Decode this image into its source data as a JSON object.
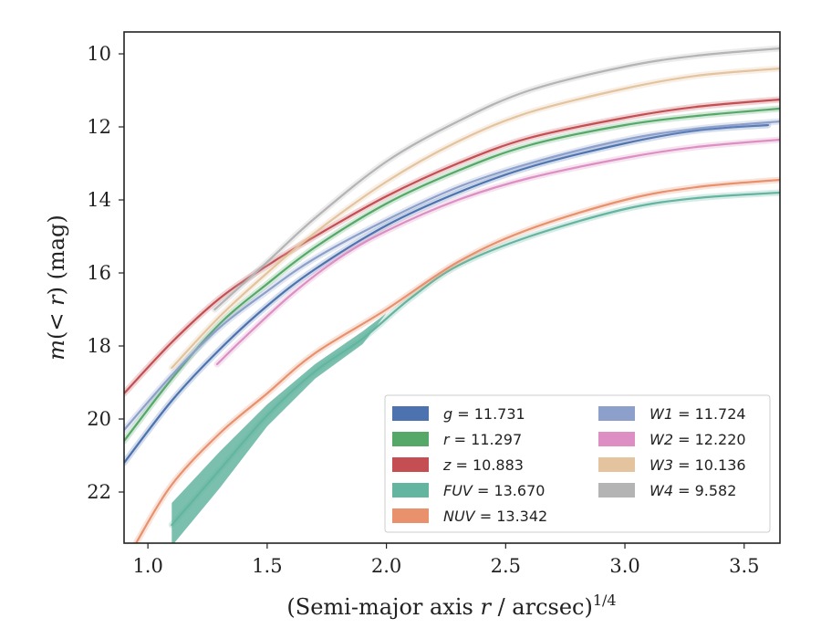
{
  "chart_data": {
    "type": "line",
    "xlabel": "(Semi-major axis r / arcsec)^1/4",
    "ylabel": "m(< r) (mag)",
    "xlim": [
      0.9,
      3.65
    ],
    "ylim": [
      23.4,
      9.4
    ],
    "y_inverted": true,
    "x_ticks": [
      "1.0",
      "1.5",
      "2.0",
      "2.5",
      "3.0",
      "3.5"
    ],
    "y_ticks": [
      "10",
      "12",
      "14",
      "16",
      "18",
      "20",
      "22"
    ],
    "legend_position": "lower-right",
    "series": [
      {
        "name": "g",
        "legend_value": "11.731",
        "color": "#4c72b0",
        "points": [
          [
            0.9,
            21.2
          ],
          [
            1.1,
            19.5
          ],
          [
            1.3,
            18.1
          ],
          [
            1.5,
            16.9
          ],
          [
            1.7,
            15.9
          ],
          [
            2.0,
            14.7
          ],
          [
            2.3,
            13.8
          ],
          [
            2.6,
            13.1
          ],
          [
            3.0,
            12.45
          ],
          [
            3.3,
            12.1
          ],
          [
            3.6,
            11.95
          ]
        ]
      },
      {
        "name": "r",
        "legend_value": "11.297",
        "color": "#55a868",
        "points": [
          [
            0.9,
            20.6
          ],
          [
            1.1,
            18.9
          ],
          [
            1.3,
            17.4
          ],
          [
            1.5,
            16.3
          ],
          [
            1.7,
            15.3
          ],
          [
            2.0,
            14.1
          ],
          [
            2.3,
            13.2
          ],
          [
            2.6,
            12.5
          ],
          [
            3.0,
            11.95
          ],
          [
            3.3,
            11.7
          ],
          [
            3.65,
            11.5
          ]
        ]
      },
      {
        "name": "z",
        "legend_value": "10.883",
        "color": "#c44e52",
        "points": [
          [
            0.9,
            19.3
          ],
          [
            1.1,
            17.9
          ],
          [
            1.3,
            16.7
          ],
          [
            1.5,
            15.8
          ],
          [
            1.7,
            15.0
          ],
          [
            2.0,
            13.9
          ],
          [
            2.3,
            13.0
          ],
          [
            2.6,
            12.3
          ],
          [
            3.0,
            11.75
          ],
          [
            3.3,
            11.45
          ],
          [
            3.65,
            11.25
          ]
        ]
      },
      {
        "name": "FUV",
        "legend_value": "13.670",
        "color": "#64b5a0",
        "points": [
          [
            1.1,
            22.9
          ],
          [
            1.3,
            21.4
          ],
          [
            1.5,
            19.9
          ],
          [
            1.7,
            18.7
          ],
          [
            1.9,
            17.8
          ],
          [
            2.1,
            16.7
          ],
          [
            2.3,
            15.8
          ],
          [
            2.6,
            15.0
          ],
          [
            3.0,
            14.25
          ],
          [
            3.3,
            13.95
          ],
          [
            3.65,
            13.8
          ]
        ]
      },
      {
        "name": "NUV",
        "legend_value": "13.342",
        "color": "#e8916c",
        "points": [
          [
            0.95,
            23.4
          ],
          [
            1.1,
            21.8
          ],
          [
            1.3,
            20.4
          ],
          [
            1.5,
            19.3
          ],
          [
            1.7,
            18.2
          ],
          [
            2.0,
            17.0
          ],
          [
            2.3,
            15.7
          ],
          [
            2.6,
            14.8
          ],
          [
            3.0,
            14.0
          ],
          [
            3.3,
            13.65
          ],
          [
            3.65,
            13.45
          ]
        ]
      },
      {
        "name": "W1",
        "legend_value": "11.724",
        "color": "#8da0cb",
        "points": [
          [
            0.9,
            20.3
          ],
          [
            1.1,
            18.8
          ],
          [
            1.3,
            17.5
          ],
          [
            1.5,
            16.5
          ],
          [
            1.7,
            15.6
          ],
          [
            2.0,
            14.55
          ],
          [
            2.3,
            13.65
          ],
          [
            2.6,
            13.0
          ],
          [
            3.0,
            12.35
          ],
          [
            3.3,
            12.05
          ],
          [
            3.65,
            11.85
          ]
        ]
      },
      {
        "name": "W2",
        "legend_value": "12.220",
        "color": "#dd8fc3",
        "points": [
          [
            1.29,
            18.5
          ],
          [
            1.4,
            17.8
          ],
          [
            1.6,
            16.6
          ],
          [
            1.8,
            15.6
          ],
          [
            2.0,
            14.85
          ],
          [
            2.3,
            14.0
          ],
          [
            2.6,
            13.4
          ],
          [
            3.0,
            12.85
          ],
          [
            3.3,
            12.55
          ],
          [
            3.65,
            12.35
          ]
        ]
      },
      {
        "name": "W3",
        "legend_value": "10.136",
        "color": "#e3c49e",
        "points": [
          [
            1.1,
            18.6
          ],
          [
            1.3,
            17.2
          ],
          [
            1.5,
            16.0
          ],
          [
            1.7,
            14.9
          ],
          [
            2.0,
            13.5
          ],
          [
            2.3,
            12.4
          ],
          [
            2.6,
            11.6
          ],
          [
            3.0,
            10.95
          ],
          [
            3.3,
            10.6
          ],
          [
            3.65,
            10.4
          ]
        ]
      },
      {
        "name": "W4",
        "legend_value": "9.582",
        "color": "#b4b4b4",
        "points": [
          [
            1.28,
            17.0
          ],
          [
            1.5,
            15.7
          ],
          [
            1.7,
            14.5
          ],
          [
            2.0,
            12.95
          ],
          [
            2.3,
            11.85
          ],
          [
            2.6,
            11.0
          ],
          [
            3.0,
            10.35
          ],
          [
            3.3,
            10.05
          ],
          [
            3.65,
            9.85
          ]
        ]
      }
    ]
  }
}
